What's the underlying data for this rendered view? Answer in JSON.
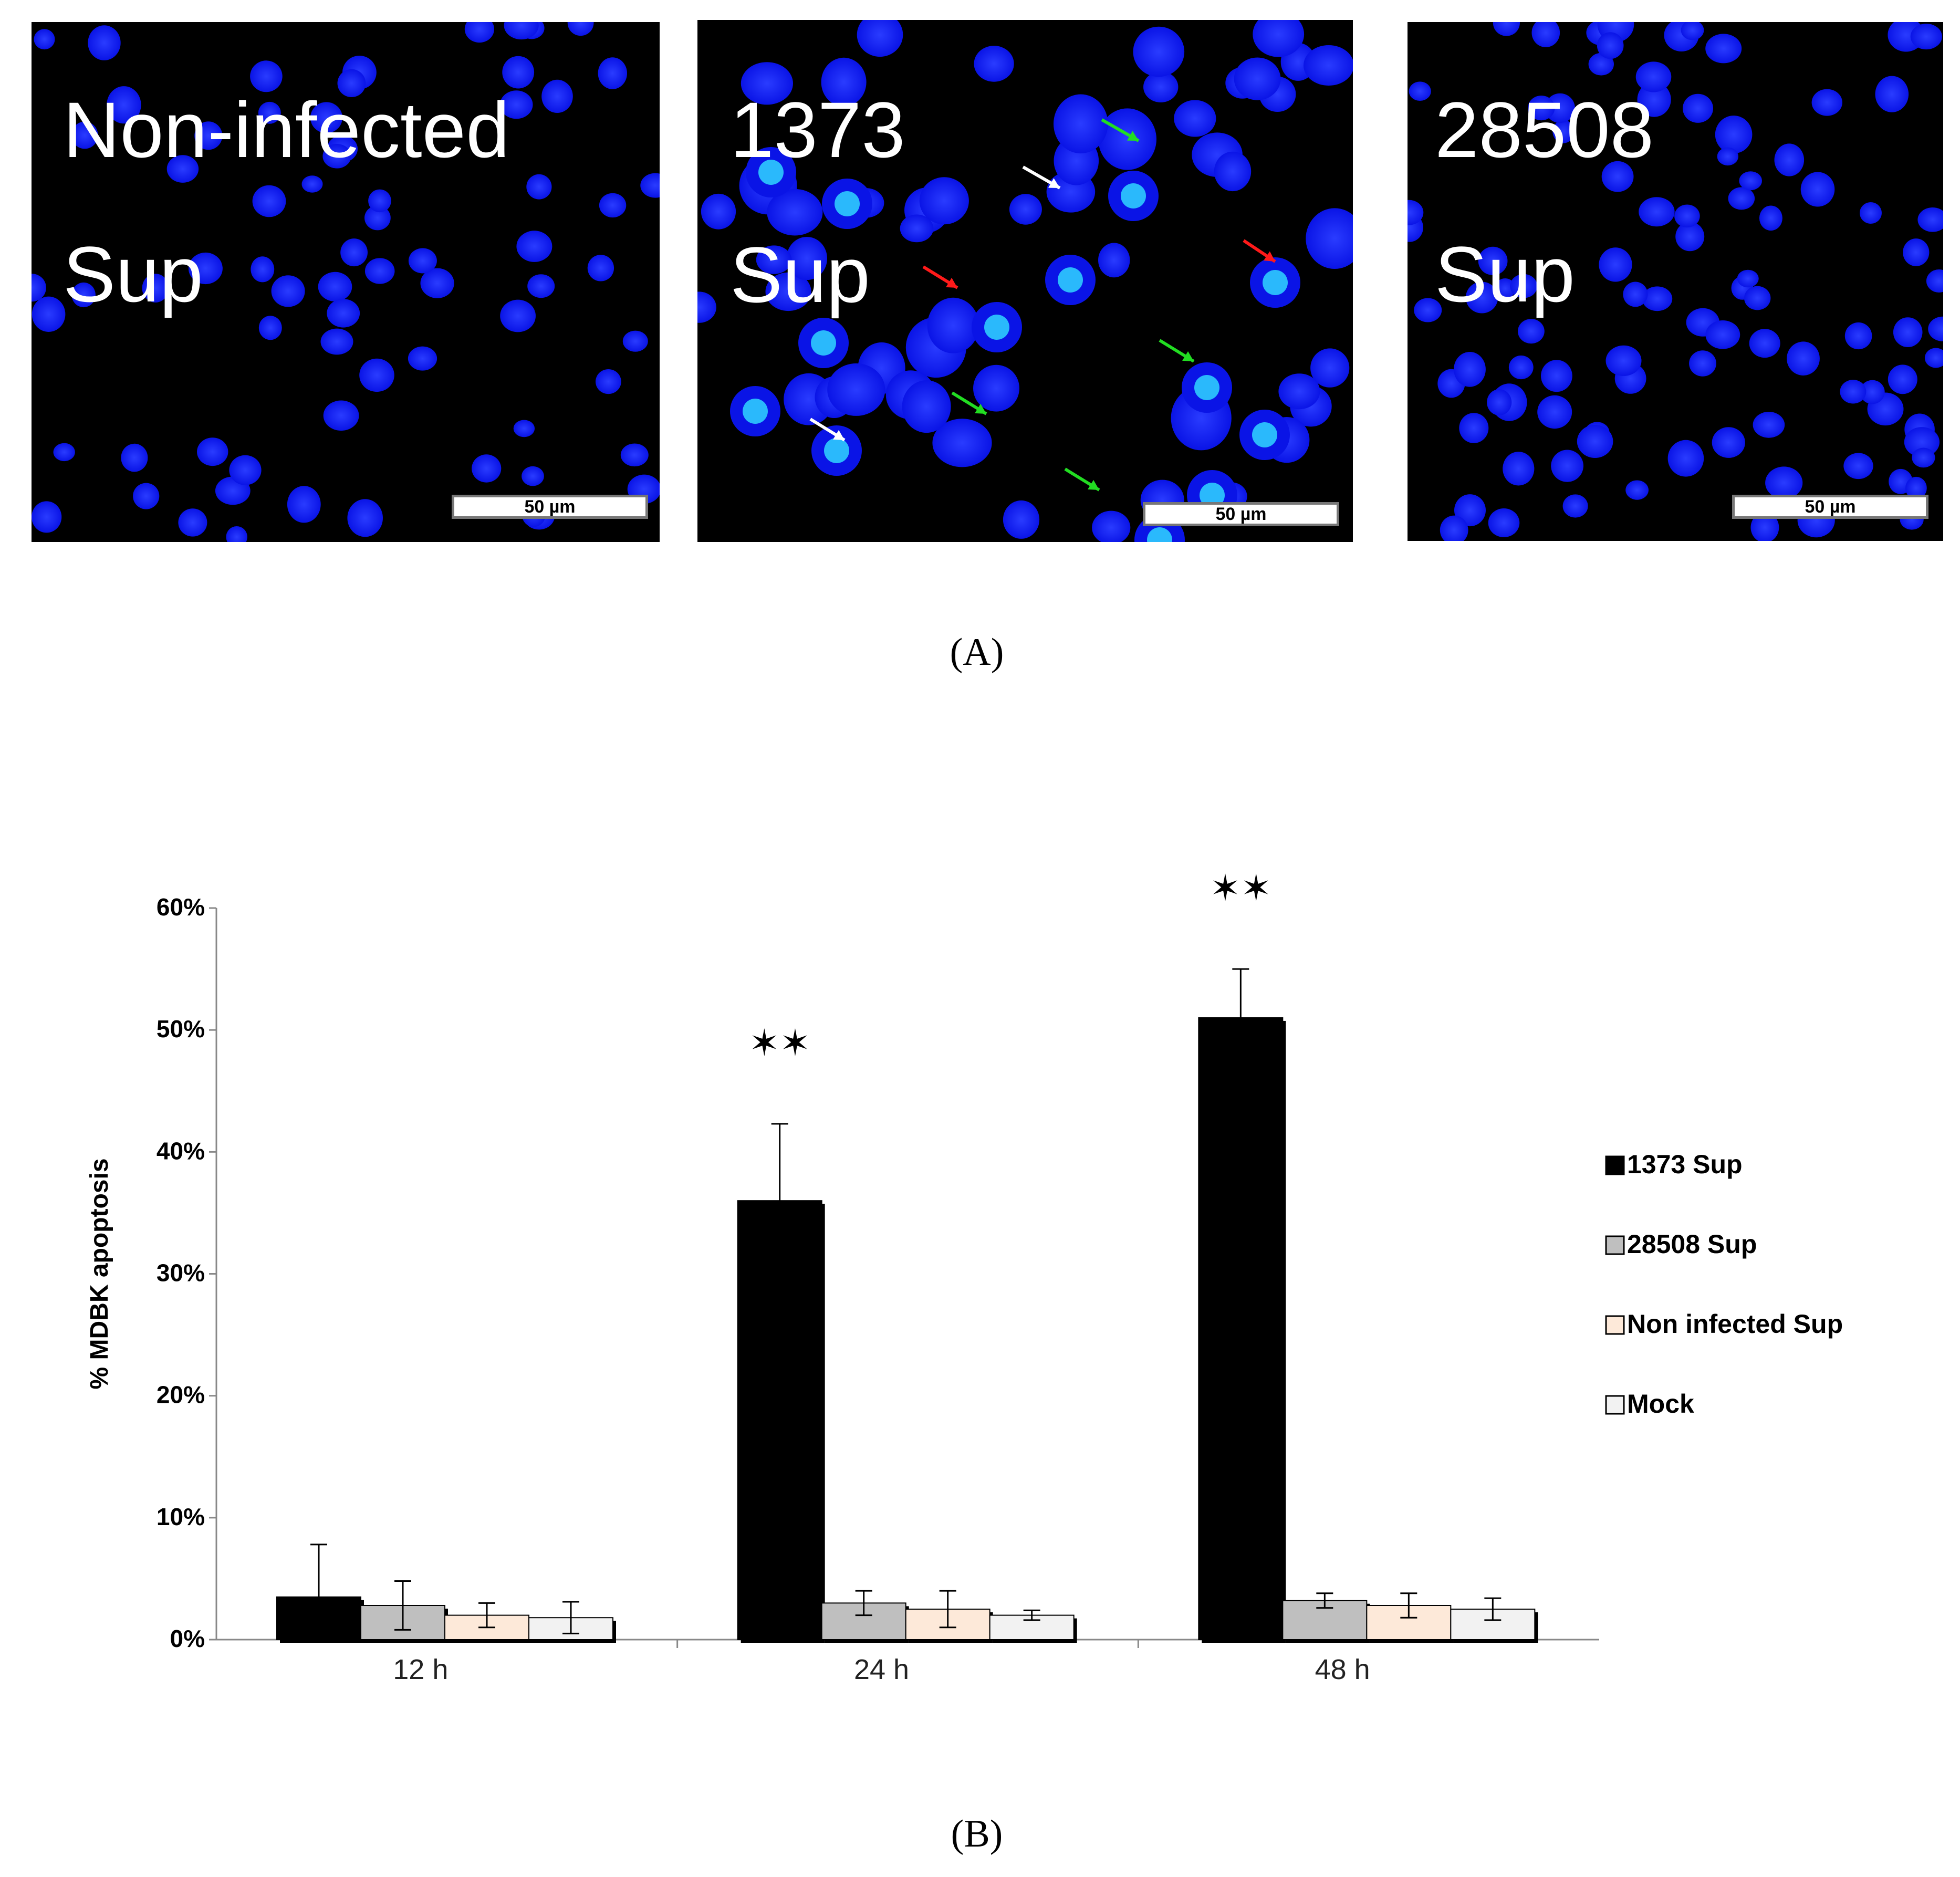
{
  "panel_a": {
    "caption": "(A)",
    "panels": [
      {
        "line1": "Non-infected",
        "line2": "Sup",
        "scale_bar": "50 µm"
      },
      {
        "line1": "1373",
        "line2": "Sup",
        "scale_bar": "50 µm"
      },
      {
        "line1": "28508",
        "line2": "Sup",
        "scale_bar": "50 µm"
      }
    ]
  },
  "panel_b": {
    "caption": "(B)"
  },
  "colors": {
    "s1373": "#000000",
    "s28508": "#bfbfbf",
    "nonInfected": "#fde9d9",
    "mock": "#f2f2f2",
    "nucleus": "#0a14e6",
    "arrow_white": "#ffffff",
    "arrow_red": "#ff1a1a",
    "arrow_green": "#22dd22"
  },
  "chart_data": {
    "type": "bar",
    "title": "",
    "ylabel": "% MDBK apoptosis",
    "xlabel": "",
    "ylim": [
      0,
      0.6
    ],
    "yticks": [
      "0%",
      "10%",
      "20%",
      "30%",
      "40%",
      "50%",
      "60%"
    ],
    "categories": [
      "12 h",
      "24 h",
      "48 h"
    ],
    "legend_position": "right",
    "series": [
      {
        "name": "1373 Sup",
        "values": [
          0.035,
          0.36,
          0.51
        ],
        "errors": [
          0.043,
          0.063,
          0.04
        ]
      },
      {
        "name": "28508 Sup",
        "values": [
          0.028,
          0.03,
          0.032
        ],
        "errors": [
          0.02,
          0.01,
          0.006
        ]
      },
      {
        "name": "Non infected Sup",
        "values": [
          0.02,
          0.025,
          0.028
        ],
        "errors": [
          0.01,
          0.015,
          0.01
        ]
      },
      {
        "name": "Mock",
        "values": [
          0.018,
          0.02,
          0.025
        ],
        "errors": [
          0.013,
          0.004,
          0.009
        ]
      }
    ],
    "significance": [
      {
        "category": "24 h",
        "label": "✶✶"
      },
      {
        "category": "48 h",
        "label": "✶✶"
      }
    ]
  }
}
